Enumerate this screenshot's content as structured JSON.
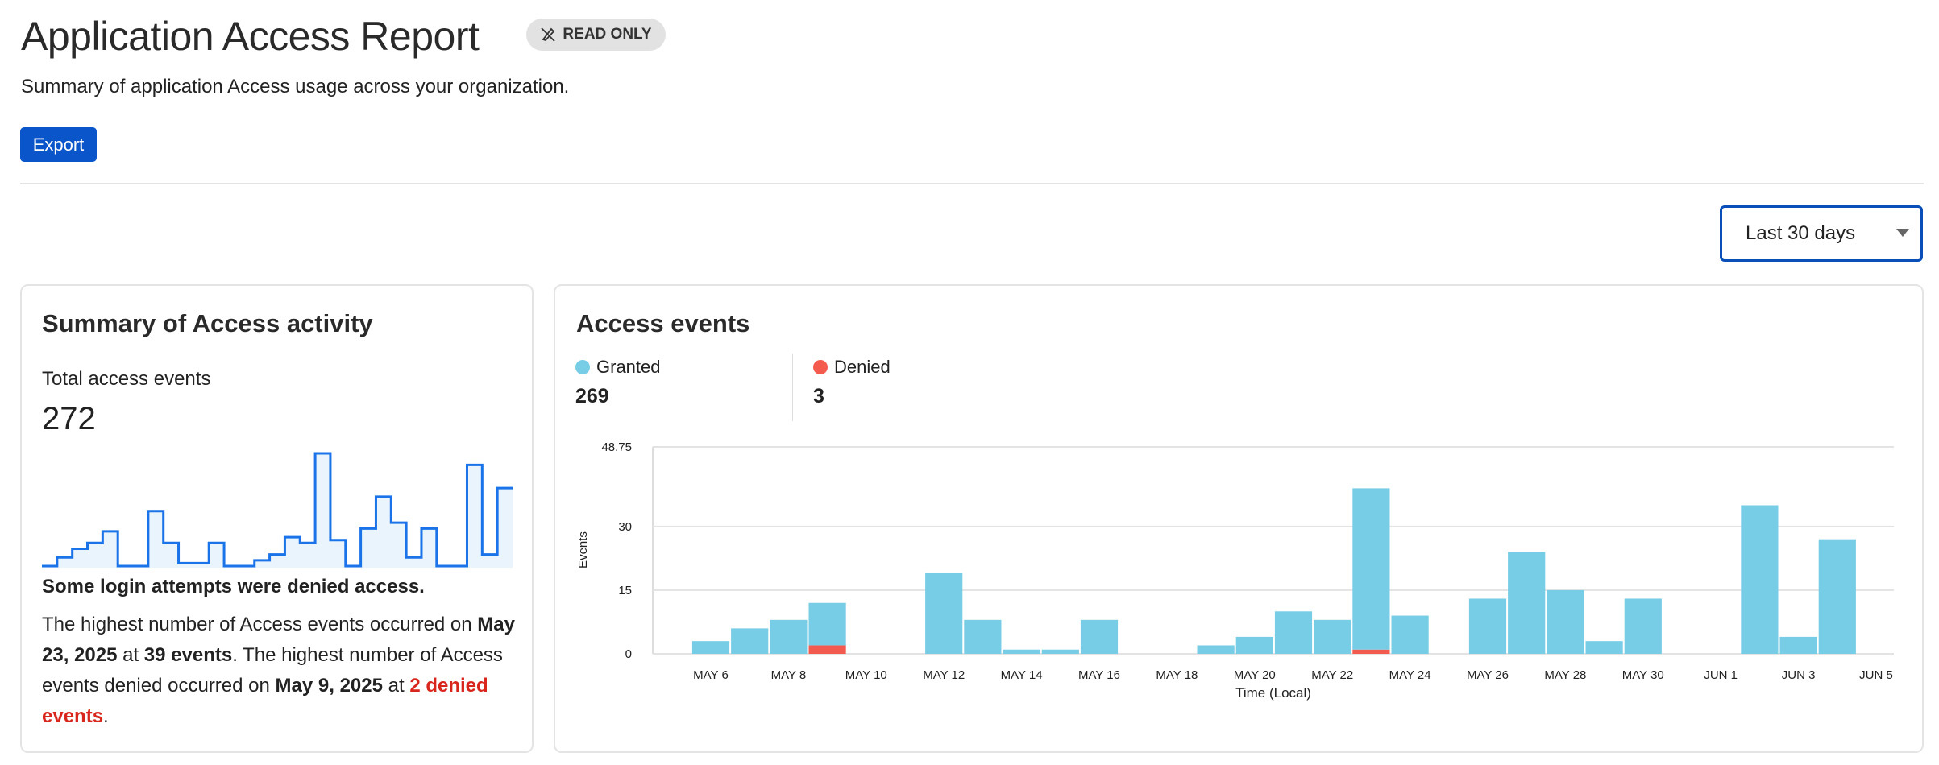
{
  "header": {
    "title": "Application Access Report",
    "badge": {
      "icon": "pencil-off-icon",
      "label": "READ ONLY"
    },
    "subtitle": "Summary of application Access usage across your organization.",
    "export_label": "Export"
  },
  "range_select": {
    "selected": "Last 30 days"
  },
  "summary": {
    "title": "Summary of Access activity",
    "total_label": "Total access events",
    "total_value": "272",
    "warning": "Some login attempts were denied access.",
    "p1": "The highest number of Access events occurred on ",
    "peak_date": "May 23, 2025",
    "p2": " at ",
    "peak_count": "39 events",
    "p3": ". The highest number of Access events denied occurred on ",
    "denied_date": "May 9, 2025",
    "p4": " at ",
    "denied_count": "2 denied events",
    "p5": "."
  },
  "events": {
    "title": "Access events",
    "legend": [
      {
        "label": "Granted",
        "value": "269",
        "color": "#78cde6"
      },
      {
        "label": "Denied",
        "value": "3",
        "color": "#f45b4f"
      }
    ]
  },
  "colors": {
    "accent": "#0a55c9",
    "sparkline": "#1a73e8",
    "sparkline_fill": "#eaf4fd",
    "denied_text": "#d9261c"
  },
  "chart_data": {
    "type": "bar",
    "stacked": true,
    "xlabel": "Time (Local)",
    "ylabel": "Events",
    "ylim": [
      0,
      48.75
    ],
    "yticks": [
      "0",
      "15",
      "30",
      "48.75"
    ],
    "xticks": [
      "MAY 6",
      "MAY 8",
      "MAY 10",
      "MAY 12",
      "MAY 14",
      "MAY 16",
      "MAY 18",
      "MAY 20",
      "MAY 22",
      "MAY 24",
      "MAY 26",
      "MAY 28",
      "MAY 30",
      "JUN 1",
      "JUN 3",
      "JUN 5"
    ],
    "grid": true,
    "categories": [
      "May 6",
      "May 7",
      "May 8",
      "May 9",
      "May 10",
      "May 11",
      "May 12",
      "May 13",
      "May 14",
      "May 15",
      "May 16",
      "May 17",
      "May 18",
      "May 19",
      "May 20",
      "May 21",
      "May 22",
      "May 23",
      "May 24",
      "May 25",
      "May 26",
      "May 27",
      "May 28",
      "May 29",
      "May 30",
      "May 31",
      "Jun 1",
      "Jun 2",
      "Jun 3",
      "Jun 4"
    ],
    "series": [
      {
        "name": "Denied",
        "color": "#f45b4f",
        "values": [
          0,
          0,
          0,
          2,
          0,
          0,
          0,
          0,
          0,
          0,
          0,
          0,
          0,
          0,
          0,
          0,
          0,
          1,
          0,
          0,
          0,
          0,
          0,
          0,
          0,
          0,
          0,
          0,
          0,
          0
        ]
      },
      {
        "name": "Granted",
        "color": "#78cde6",
        "values": [
          3,
          6,
          8,
          10,
          0,
          0,
          19,
          8,
          1,
          1,
          8,
          0,
          0,
          2,
          4,
          10,
          8,
          38,
          9,
          0,
          13,
          24,
          15,
          3,
          13,
          0,
          0,
          35,
          4,
          27
        ]
      }
    ]
  }
}
